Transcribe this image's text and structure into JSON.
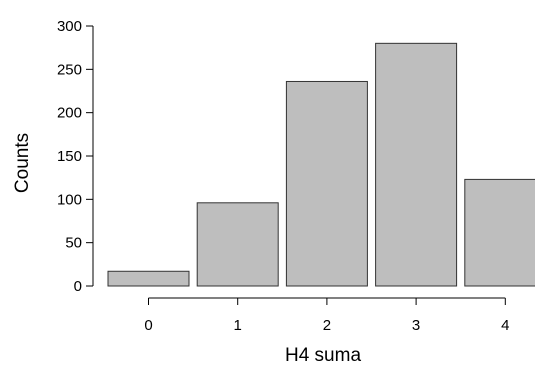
{
  "chart_data": {
    "type": "bar",
    "title": "",
    "xlabel": "H4 suma",
    "ylabel": "Counts",
    "categories": [
      "0",
      "1",
      "2",
      "3",
      "4"
    ],
    "values": [
      17,
      96,
      236,
      280,
      123
    ],
    "ylim": [
      0,
      300
    ],
    "yticks": [
      0,
      50,
      100,
      150,
      200,
      250,
      300
    ],
    "ytick_labels": [
      "0",
      "50",
      "100",
      "150",
      "200",
      "250",
      "300"
    ],
    "grid": false,
    "legend": "none",
    "colors": {
      "bar_fill": "#bebebe",
      "bar_stroke": "#333333",
      "axis": "#000000"
    }
  }
}
